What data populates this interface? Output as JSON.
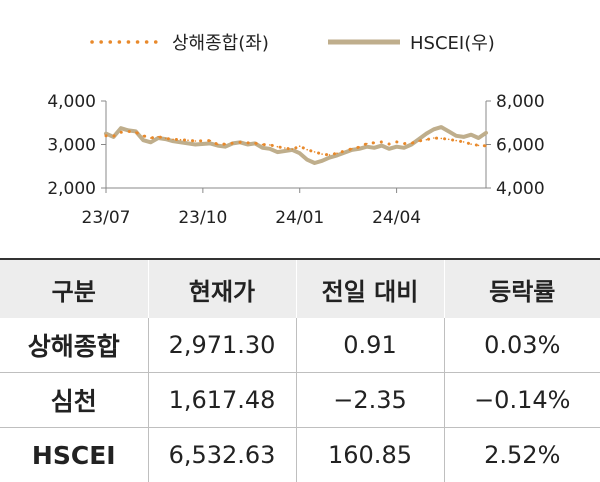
{
  "chart_data": {
    "type": "line",
    "series": [
      {
        "name": "상해종합(좌)",
        "axis": "left",
        "style": "dotted",
        "color": "#E8892B",
        "x": [
          "2023-07-03",
          "2023-07-10",
          "2023-07-17",
          "2023-07-24",
          "2023-07-31",
          "2023-08-07",
          "2023-08-14",
          "2023-08-21",
          "2023-08-28",
          "2023-09-04",
          "2023-09-11",
          "2023-09-18",
          "2023-09-25",
          "2023-10-09",
          "2023-10-16",
          "2023-10-23",
          "2023-10-30",
          "2023-11-06",
          "2023-11-13",
          "2023-11-20",
          "2023-11-27",
          "2023-12-04",
          "2023-12-11",
          "2023-12-18",
          "2023-12-25",
          "2024-01-01",
          "2024-01-08",
          "2024-01-15",
          "2024-01-22",
          "2024-01-29",
          "2024-02-05",
          "2024-02-19",
          "2024-02-26",
          "2024-03-04",
          "2024-03-11",
          "2024-03-18",
          "2024-03-25",
          "2024-04-01",
          "2024-04-08",
          "2024-04-15",
          "2024-04-22",
          "2024-04-29",
          "2024-05-06",
          "2024-05-13",
          "2024-05-20",
          "2024-05-27",
          "2024-06-03",
          "2024-06-10",
          "2024-06-17",
          "2024-06-24"
        ],
        "values": [
          3200,
          3190,
          3280,
          3300,
          3280,
          3200,
          3150,
          3180,
          3140,
          3120,
          3110,
          3100,
          3080,
          3090,
          3000,
          3010,
          3030,
          3050,
          3040,
          3030,
          3000,
          2990,
          2950,
          2920,
          2890,
          2960,
          2880,
          2830,
          2780,
          2760,
          2800,
          2900,
          2940,
          3020,
          3040,
          3060,
          3010,
          3060,
          3020,
          3030,
          3080,
          3110,
          3150,
          3140,
          3120,
          3090,
          3060,
          3010,
          2980,
          2971
        ]
      },
      {
        "name": "HSCEI(우)",
        "axis": "right",
        "style": "solid",
        "color": "#BFAE8C",
        "x": [
          "2023-07-03",
          "2023-07-10",
          "2023-07-17",
          "2023-07-24",
          "2023-07-31",
          "2023-08-07",
          "2023-08-14",
          "2023-08-21",
          "2023-08-28",
          "2023-09-04",
          "2023-09-11",
          "2023-09-18",
          "2023-09-25",
          "2023-10-09",
          "2023-10-16",
          "2023-10-23",
          "2023-10-30",
          "2023-11-06",
          "2023-11-13",
          "2023-11-20",
          "2023-11-27",
          "2023-12-04",
          "2023-12-11",
          "2023-12-18",
          "2023-12-25",
          "2024-01-01",
          "2024-01-08",
          "2024-01-15",
          "2024-01-22",
          "2024-01-29",
          "2024-02-05",
          "2024-02-19",
          "2024-02-26",
          "2024-03-04",
          "2024-03-11",
          "2024-03-18",
          "2024-03-25",
          "2024-04-01",
          "2024-04-08",
          "2024-04-15",
          "2024-04-22",
          "2024-04-29",
          "2024-05-06",
          "2024-05-13",
          "2024-05-20",
          "2024-05-27",
          "2024-06-03",
          "2024-06-10",
          "2024-06-17",
          "2024-06-24"
        ],
        "values": [
          6500,
          6350,
          6750,
          6650,
          6600,
          6200,
          6100,
          6300,
          6250,
          6150,
          6100,
          6050,
          6000,
          6050,
          5950,
          5900,
          6050,
          6100,
          6000,
          6050,
          5850,
          5800,
          5650,
          5700,
          5750,
          5600,
          5300,
          5150,
          5250,
          5400,
          5500,
          5750,
          5800,
          5900,
          5850,
          5950,
          5800,
          5900,
          5850,
          6000,
          6250,
          6500,
          6700,
          6800,
          6600,
          6400,
          6350,
          6450,
          6300,
          6533
        ]
      }
    ],
    "x_ticks": [
      "23/07",
      "23/10",
      "24/01",
      "24/04"
    ],
    "x_tick_dates": [
      "2023-07-03",
      "2023-10-02",
      "2024-01-01",
      "2024-04-01"
    ],
    "x_range": [
      "2023-07-03",
      "2024-06-24"
    ],
    "y_left": {
      "ticks": [
        "2,000",
        "3,000",
        "4,000"
      ],
      "tick_values": [
        2000,
        3000,
        4000
      ],
      "range": [
        2000,
        4000
      ]
    },
    "y_right": {
      "ticks": [
        "4,000",
        "6,000",
        "8,000"
      ],
      "tick_values": [
        4000,
        6000,
        8000
      ],
      "range": [
        4000,
        8000
      ]
    },
    "legend_position": "top",
    "grid": false
  },
  "table": {
    "headers": [
      "구분",
      "현재가",
      "전일 대비",
      "등락률"
    ],
    "rows": [
      [
        "상해종합",
        "2,971.30",
        "0.91",
        "0.03%"
      ],
      [
        "심천",
        "1,617.48",
        "−2.35",
        "−0.14%"
      ],
      [
        "HSCEI",
        "6,532.63",
        "160.85",
        "2.52%"
      ]
    ]
  }
}
